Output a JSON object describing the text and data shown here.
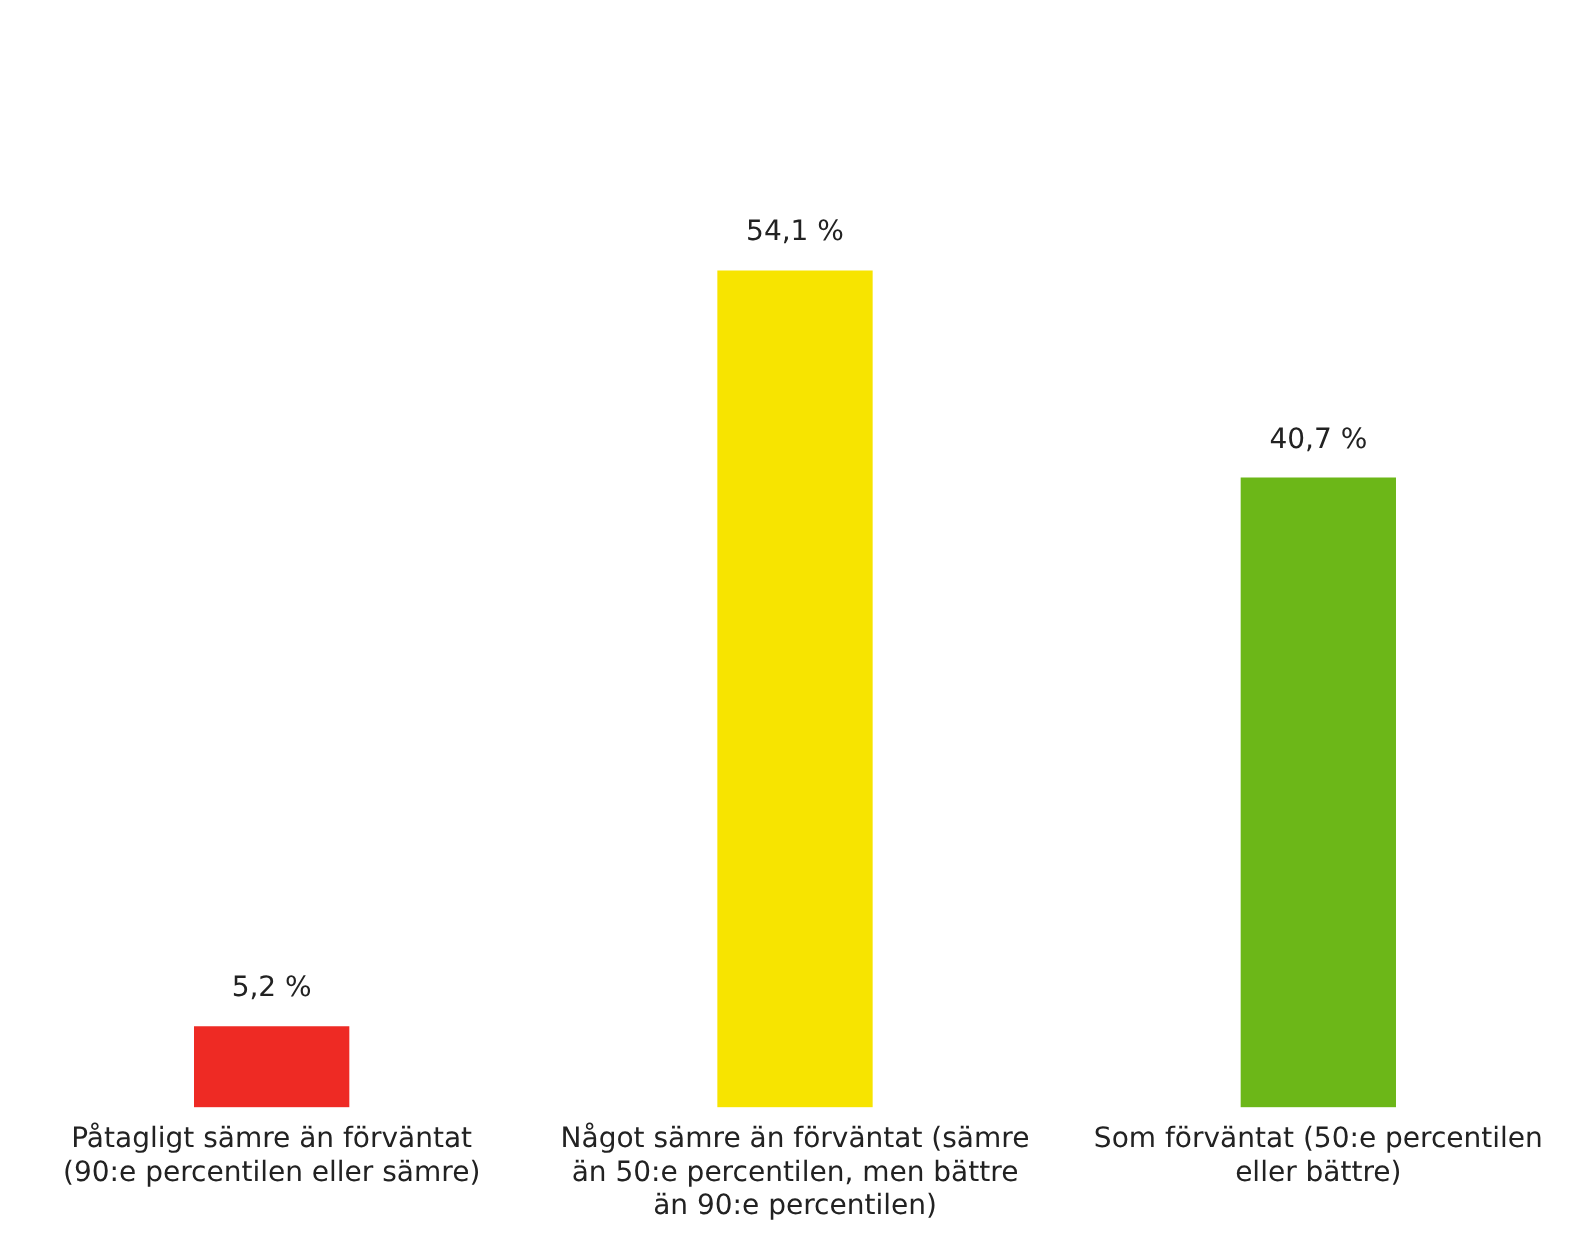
{
  "chart_data": {
    "type": "bar",
    "categories": [
      "Påtagligt sämre än förväntat (90:e percentilen eller sämre)",
      "Något sämre än förväntat (sämre än 50:e percentilen, men bättre än 90:e percentilen)",
      "Som förväntat (50:e percentilen eller bättre)"
    ],
    "values": [
      5.2,
      54.1,
      40.7
    ],
    "colors": [
      "#ee2a24",
      "#f7e400",
      "#6cb718"
    ],
    "value_labels": [
      "5,2 %",
      "54,1 %",
      "40,7 %"
    ],
    "grid": false,
    "legend": false
  }
}
